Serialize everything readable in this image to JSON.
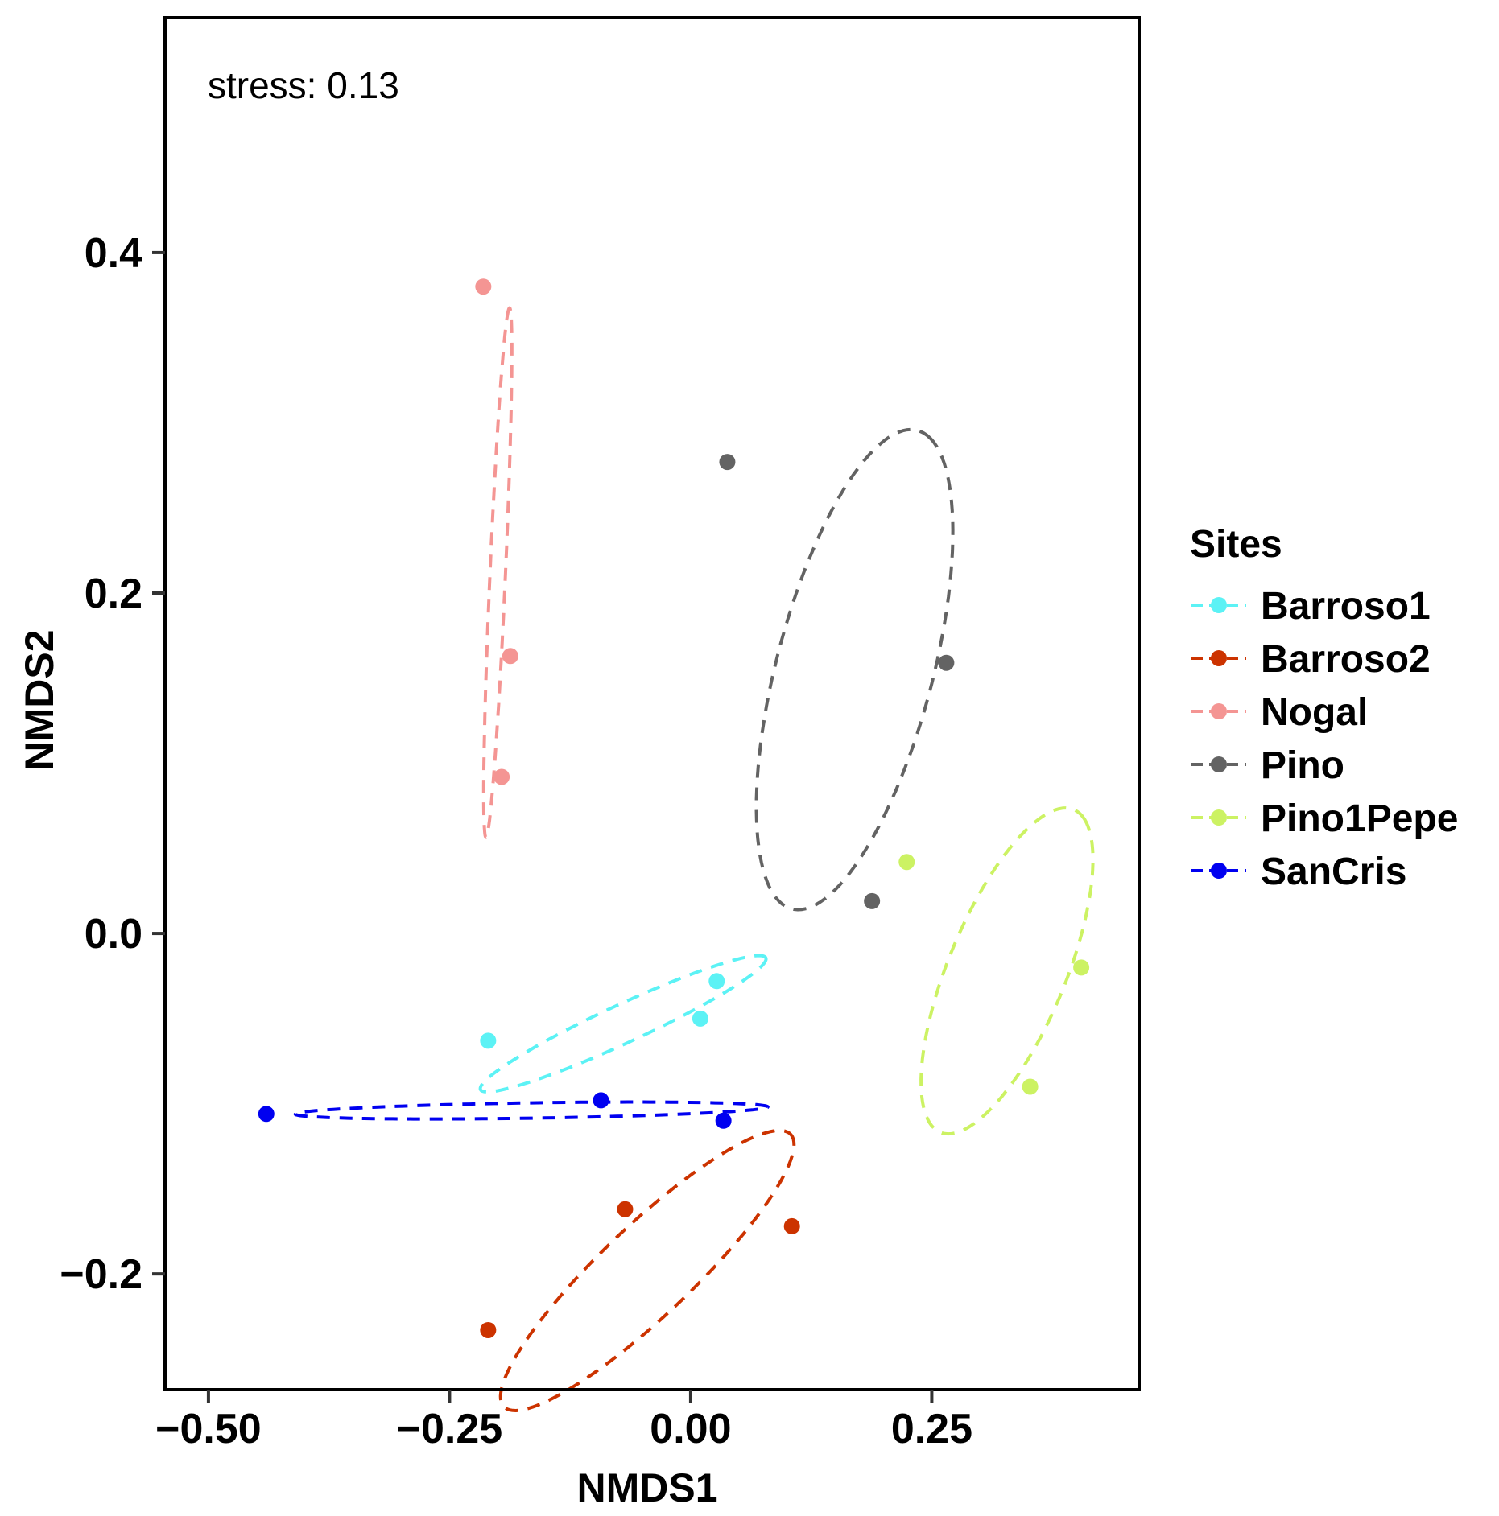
{
  "chart_data": {
    "type": "scatter",
    "title": "",
    "annotation": "stress: 0.13",
    "xlabel": "NMDS1",
    "ylabel": "NMDS2",
    "xlim": [
      -0.545,
      0.465
    ],
    "ylim": [
      -0.268,
      0.538
    ],
    "xticks": [
      -0.5,
      -0.25,
      0.0,
      0.25
    ],
    "xtick_labels": [
      "−0.50",
      "−0.25",
      "0.00",
      "0.25"
    ],
    "yticks": [
      -0.2,
      0.0,
      0.2,
      0.4
    ],
    "ytick_labels": [
      "−0.2",
      "0.0",
      "0.2",
      "0.4"
    ],
    "grid": false,
    "legend": {
      "title": "Sites",
      "position": "right"
    },
    "series": [
      {
        "name": "Barroso1",
        "color": "#5CF2F5",
        "points": [
          [
            -0.21,
            -0.063
          ],
          [
            0.01,
            -0.05
          ],
          [
            0.027,
            -0.028
          ]
        ],
        "ellipse": {
          "cx": -0.07,
          "cy": -0.053,
          "a": 0.153,
          "b": 0.012,
          "angle_deg": 14.5
        }
      },
      {
        "name": "Barroso2",
        "color": "#CC3300",
        "points": [
          [
            -0.21,
            -0.233
          ],
          [
            -0.068,
            -0.162
          ],
          [
            0.105,
            -0.172
          ]
        ],
        "ellipse": {
          "cx": -0.045,
          "cy": -0.198,
          "a": 0.17,
          "b": 0.032,
          "angle_deg": 27
        }
      },
      {
        "name": "Nogal",
        "color": "#F49593",
        "points": [
          [
            -0.215,
            0.38
          ],
          [
            -0.187,
            0.163
          ],
          [
            -0.196,
            0.092
          ]
        ],
        "ellipse": {
          "cx": -0.2,
          "cy": 0.212,
          "a": 0.156,
          "b": 0.008,
          "angle_deg": 85.5
        }
      },
      {
        "name": "Pino",
        "color": "#636363",
        "points": [
          [
            0.038,
            0.277
          ],
          [
            0.265,
            0.159
          ],
          [
            0.188,
            0.019
          ]
        ],
        "ellipse": {
          "cx": 0.17,
          "cy": 0.155,
          "a": 0.157,
          "b": 0.075,
          "angle_deg": 60
        }
      },
      {
        "name": "Pino1Pepe",
        "color": "#CCF263",
        "points": [
          [
            0.224,
            0.042
          ],
          [
            0.405,
            -0.02
          ],
          [
            0.352,
            -0.09
          ]
        ],
        "ellipse": {
          "cx": 0.328,
          "cy": -0.022,
          "a": 0.12,
          "b": 0.052,
          "angle_deg": 48
        }
      },
      {
        "name": "SanCris",
        "color": "#0000F0",
        "points": [
          [
            -0.44,
            -0.106
          ],
          [
            -0.093,
            -0.098
          ],
          [
            0.034,
            -0.11
          ]
        ],
        "ellipse": {
          "cx": -0.165,
          "cy": -0.104,
          "a": 0.245,
          "b": 0.0045,
          "angle_deg": 0.5
        }
      }
    ]
  }
}
